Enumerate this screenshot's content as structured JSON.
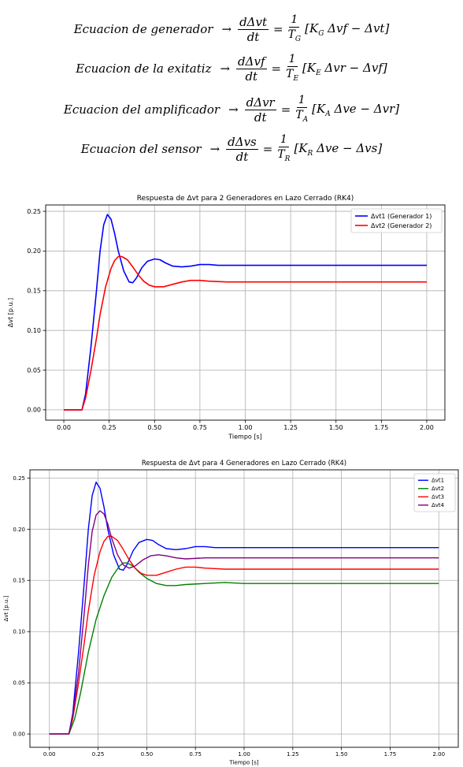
{
  "equations": [
    {
      "label": "Ecuacion de generador",
      "arrow": "→",
      "num": "dΔvt",
      "den": "dt",
      "eq": "=",
      "coef_num": "1",
      "coef_den": "T",
      "coef_sub": "G",
      "rhs_a": "[K",
      "rhs_sub": "G",
      "rhs_b": " Δvf − Δvt]"
    },
    {
      "label": "Ecuacion de la exitatiz",
      "arrow": "→",
      "num": "dΔvf",
      "den": "dt",
      "eq": "=",
      "coef_num": "1",
      "coef_den": "T",
      "coef_sub": "E",
      "rhs_a": "[K",
      "rhs_sub": "E",
      "rhs_b": " Δvr − Δvf]"
    },
    {
      "label": "Ecuacion del amplificador",
      "arrow": "→",
      "num": "dΔvr",
      "den": "dt",
      "eq": "=",
      "coef_num": "1",
      "coef_den": "T",
      "coef_sub": "A",
      "rhs_a": "[K",
      "rhs_sub": "A",
      "rhs_b": " Δve − Δvr]"
    },
    {
      "label": "Ecuacion del sensor",
      "arrow": "→",
      "num": "dΔvs",
      "den": "dt",
      "eq": "=",
      "coef_num": "1",
      "coef_den": "T",
      "coef_sub": "R",
      "rhs_a": "[K",
      "rhs_sub": "R",
      "rhs_b": " Δve − Δvs]"
    }
  ],
  "chart_data": [
    {
      "type": "line",
      "title": "Respuesta de Δvt para 2 Generadores en Lazo Cerrado (RK4)",
      "xlabel": "Tiempo [s]",
      "ylabel": "Δvt [p.u.]",
      "xlim": [
        -0.1,
        2.1
      ],
      "ylim": [
        -0.013,
        0.258
      ],
      "xticks": [
        "0.00",
        "0.25",
        "0.50",
        "0.75",
        "1.00",
        "1.25",
        "1.50",
        "1.75",
        "2.00"
      ],
      "yticks": [
        "0.00",
        "0.05",
        "0.10",
        "0.15",
        "0.20",
        "0.25"
      ],
      "grid": true,
      "legend": "top-right",
      "series": [
        {
          "name": "Δvt1 (Generador 1)",
          "color": "#0000ff",
          "x": [
            0,
            0.1,
            0.12,
            0.15,
            0.18,
            0.2,
            0.22,
            0.24,
            0.26,
            0.28,
            0.3,
            0.33,
            0.36,
            0.38,
            0.4,
            0.43,
            0.46,
            0.5,
            0.53,
            0.56,
            0.6,
            0.65,
            0.7,
            0.75,
            0.8,
            0.85,
            0.9,
            1.0,
            1.25,
            1.5,
            1.75,
            2.0
          ],
          "y": [
            0,
            0,
            0.02,
            0.08,
            0.15,
            0.2,
            0.233,
            0.246,
            0.24,
            0.222,
            0.2,
            0.175,
            0.161,
            0.16,
            0.166,
            0.179,
            0.187,
            0.19,
            0.189,
            0.185,
            0.181,
            0.18,
            0.181,
            0.183,
            0.183,
            0.182,
            0.182,
            0.182,
            0.182,
            0.182,
            0.182,
            0.182
          ]
        },
        {
          "name": "Δvt2 (Generador 2)",
          "color": "#ff0000",
          "x": [
            0,
            0.1,
            0.12,
            0.15,
            0.18,
            0.2,
            0.23,
            0.26,
            0.28,
            0.3,
            0.32,
            0.35,
            0.38,
            0.41,
            0.44,
            0.47,
            0.5,
            0.55,
            0.6,
            0.65,
            0.7,
            0.75,
            0.8,
            0.9,
            1.0,
            1.25,
            1.5,
            1.75,
            2.0
          ],
          "y": [
            0,
            0,
            0.015,
            0.05,
            0.09,
            0.12,
            0.155,
            0.178,
            0.188,
            0.193,
            0.193,
            0.189,
            0.18,
            0.17,
            0.162,
            0.157,
            0.155,
            0.155,
            0.158,
            0.161,
            0.163,
            0.163,
            0.162,
            0.161,
            0.161,
            0.161,
            0.161,
            0.161,
            0.161
          ]
        }
      ]
    },
    {
      "type": "line",
      "title": "Respuesta de Δvt para 4 Generadores en Lazo Cerrado (RK4)",
      "xlabel": "Tiempo [s]",
      "ylabel": "Δvt [p.u.]",
      "xlim": [
        -0.1,
        2.1
      ],
      "ylim": [
        -0.013,
        0.258
      ],
      "xticks": [
        "0.00",
        "0.25",
        "0.50",
        "0.75",
        "1.00",
        "1.25",
        "1.50",
        "1.75",
        "2.00"
      ],
      "yticks": [
        "0.00",
        "0.05",
        "0.10",
        "0.15",
        "0.20",
        "0.25"
      ],
      "grid": true,
      "legend": "top-right",
      "series": [
        {
          "name": "Δvt1",
          "color": "#0000ff",
          "x": [
            0,
            0.1,
            0.12,
            0.15,
            0.18,
            0.2,
            0.22,
            0.24,
            0.26,
            0.28,
            0.3,
            0.33,
            0.36,
            0.38,
            0.4,
            0.43,
            0.46,
            0.5,
            0.53,
            0.56,
            0.6,
            0.65,
            0.7,
            0.75,
            0.8,
            0.85,
            0.9,
            1.0,
            1.25,
            1.5,
            1.75,
            2.0
          ],
          "y": [
            0,
            0,
            0.02,
            0.08,
            0.15,
            0.2,
            0.233,
            0.246,
            0.24,
            0.222,
            0.2,
            0.175,
            0.161,
            0.16,
            0.166,
            0.179,
            0.187,
            0.19,
            0.189,
            0.185,
            0.181,
            0.18,
            0.181,
            0.183,
            0.183,
            0.182,
            0.182,
            0.182,
            0.182,
            0.182,
            0.182,
            0.182
          ]
        },
        {
          "name": "Δvt2",
          "color": "#008000",
          "x": [
            0,
            0.1,
            0.13,
            0.16,
            0.2,
            0.24,
            0.28,
            0.32,
            0.36,
            0.38,
            0.4,
            0.43,
            0.46,
            0.5,
            0.55,
            0.6,
            0.65,
            0.7,
            0.8,
            0.9,
            1.0,
            1.25,
            1.5,
            1.75,
            2.0
          ],
          "y": [
            0,
            0,
            0.015,
            0.04,
            0.08,
            0.112,
            0.135,
            0.153,
            0.164,
            0.167,
            0.167,
            0.164,
            0.158,
            0.152,
            0.147,
            0.145,
            0.145,
            0.146,
            0.147,
            0.148,
            0.147,
            0.147,
            0.147,
            0.147,
            0.147
          ]
        },
        {
          "name": "Δvt3",
          "color": "#ff0000",
          "x": [
            0,
            0.1,
            0.12,
            0.15,
            0.18,
            0.2,
            0.23,
            0.26,
            0.28,
            0.3,
            0.32,
            0.35,
            0.38,
            0.41,
            0.44,
            0.47,
            0.5,
            0.55,
            0.6,
            0.65,
            0.7,
            0.75,
            0.8,
            0.9,
            1.0,
            1.25,
            1.5,
            1.75,
            2.0
          ],
          "y": [
            0,
            0,
            0.015,
            0.05,
            0.09,
            0.12,
            0.155,
            0.178,
            0.188,
            0.193,
            0.193,
            0.189,
            0.18,
            0.17,
            0.162,
            0.157,
            0.155,
            0.155,
            0.158,
            0.161,
            0.163,
            0.163,
            0.162,
            0.161,
            0.161,
            0.161,
            0.161,
            0.161,
            0.161
          ]
        },
        {
          "name": "Δvt4",
          "color": "#800080",
          "x": [
            0,
            0.1,
            0.12,
            0.15,
            0.18,
            0.2,
            0.22,
            0.24,
            0.26,
            0.28,
            0.3,
            0.32,
            0.35,
            0.38,
            0.41,
            0.44,
            0.48,
            0.52,
            0.56,
            0.6,
            0.65,
            0.7,
            0.8,
            0.9,
            1.0,
            1.25,
            1.5,
            1.75,
            2.0
          ],
          "y": [
            0,
            0,
            0.018,
            0.06,
            0.12,
            0.165,
            0.198,
            0.214,
            0.218,
            0.215,
            0.205,
            0.191,
            0.175,
            0.165,
            0.162,
            0.164,
            0.17,
            0.174,
            0.175,
            0.174,
            0.172,
            0.171,
            0.172,
            0.172,
            0.172,
            0.172,
            0.172,
            0.172,
            0.172
          ]
        }
      ]
    }
  ]
}
